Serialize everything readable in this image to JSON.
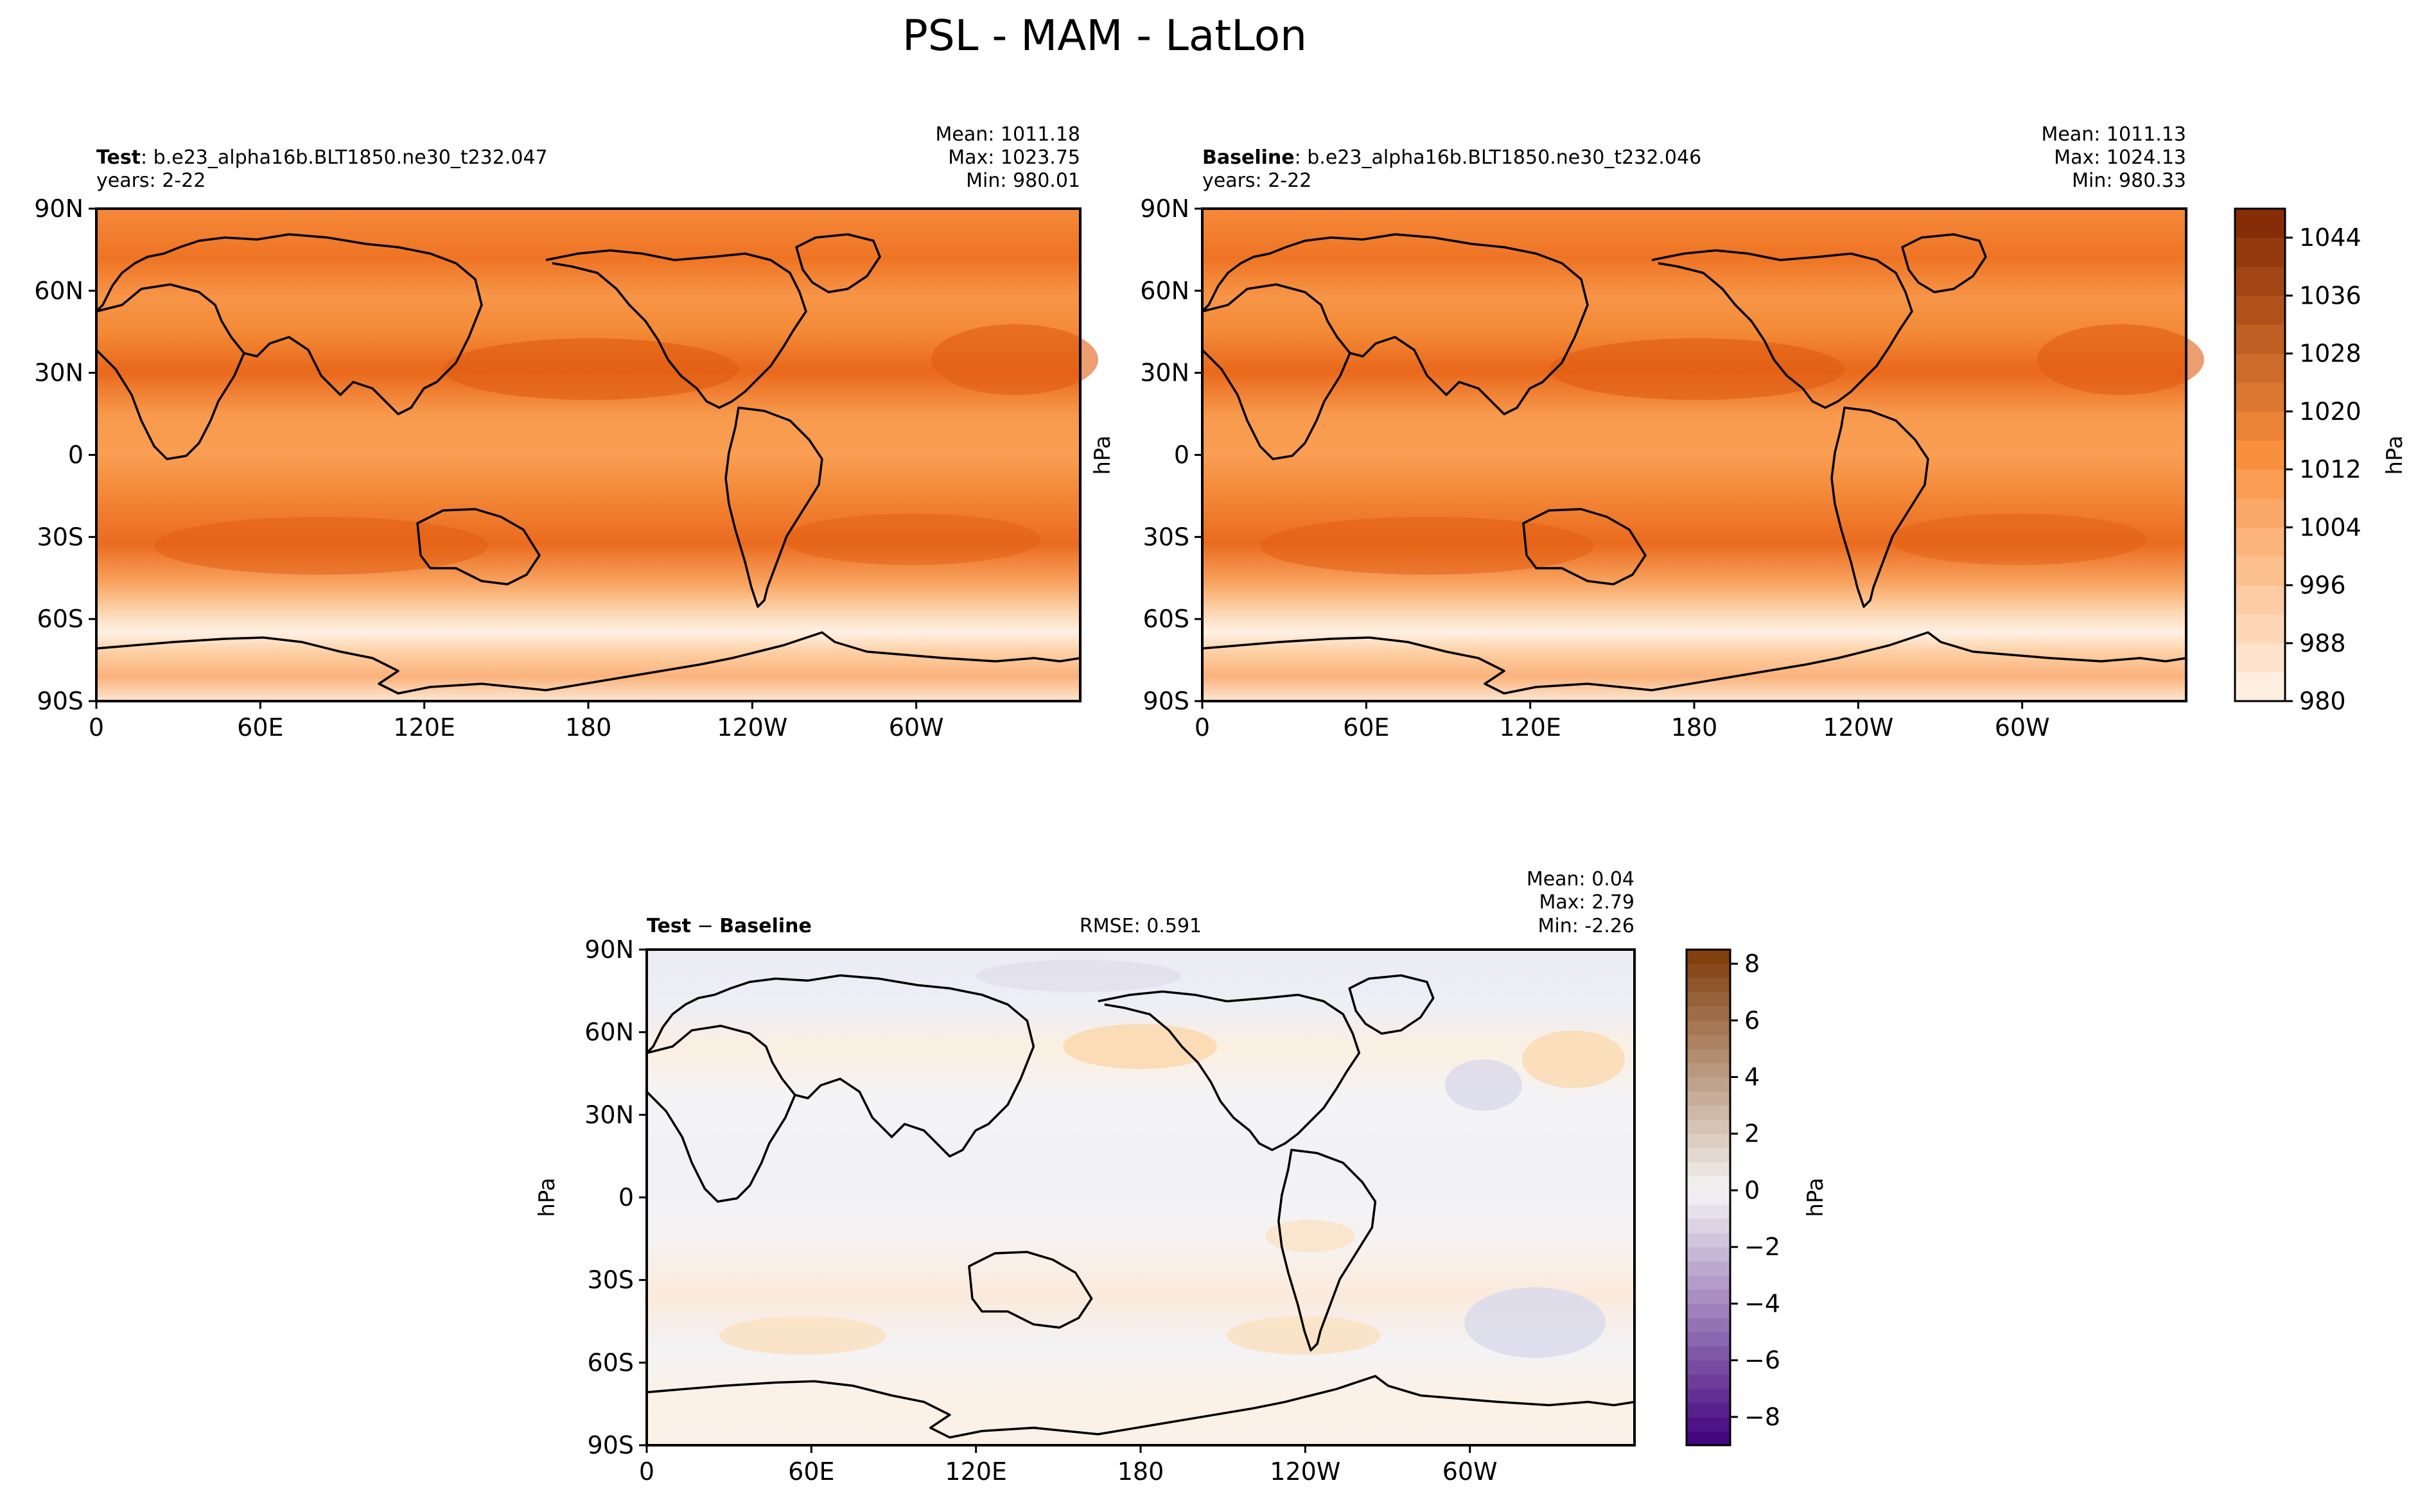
{
  "figure": {
    "title": "PSL - MAM - LatLon"
  },
  "colors": {
    "abs_low": "#fff5eb",
    "abs_mid": "#f9903e",
    "abs_high": "#7f2704",
    "abs_fill": "#f6852f",
    "abs_band": "#e8641a",
    "diff_neg_end": "#3f007d",
    "diff_zero": "#f4f4f4",
    "diff_pos_end": "#7f3b08",
    "diff_fill": "#f3f3f5",
    "coast": "#000000"
  },
  "chart_data": [
    {
      "type": "heatmap",
      "panel": "test",
      "label_bold": "Test",
      "label_rest": ": b.e23_alpha16b.BLT1850.ne30_t232.047",
      "years": "years: 2-22",
      "stats": {
        "mean": "Mean: 1011.18",
        "max": "Max: 1023.75",
        "min": "Min: 980.01"
      },
      "x_ticks": [
        "0",
        "60E",
        "120E",
        "180",
        "120W",
        "60W"
      ],
      "y_ticks": [
        "90N",
        "60N",
        "30N",
        "0",
        "30S",
        "60S",
        "90S"
      ],
      "xlim": [
        0,
        360
      ],
      "ylim": [
        -90,
        90
      ],
      "zonal_profile_hPa": [
        {
          "lat": 90,
          "value": 1014
        },
        {
          "lat": 75,
          "value": 1016
        },
        {
          "lat": 60,
          "value": 1012
        },
        {
          "lat": 45,
          "value": 1014
        },
        {
          "lat": 30,
          "value": 1020
        },
        {
          "lat": 15,
          "value": 1013
        },
        {
          "lat": 0,
          "value": 1010
        },
        {
          "lat": -15,
          "value": 1012
        },
        {
          "lat": -30,
          "value": 1019
        },
        {
          "lat": -45,
          "value": 1010
        },
        {
          "lat": -55,
          "value": 995
        },
        {
          "lat": -65,
          "value": 984
        },
        {
          "lat": -75,
          "value": 990
        },
        {
          "lat": -90,
          "value": 988
        }
      ]
    },
    {
      "type": "heatmap",
      "panel": "baseline",
      "label_bold": "Baseline",
      "label_rest": ": b.e23_alpha16b.BLT1850.ne30_t232.046",
      "years": "years: 2-22",
      "stats": {
        "mean": "Mean: 1011.13",
        "max": "Max: 1024.13",
        "min": "Min: 980.33"
      },
      "x_ticks": [
        "0",
        "60E",
        "120E",
        "180",
        "120W",
        "60W"
      ],
      "y_ticks": [
        "90N",
        "60N",
        "30N",
        "0",
        "30S",
        "60S",
        "90S"
      ],
      "xlim": [
        0,
        360
      ],
      "ylim": [
        -90,
        90
      ],
      "zonal_profile_hPa": [
        {
          "lat": 90,
          "value": 1014
        },
        {
          "lat": 75,
          "value": 1016
        },
        {
          "lat": 60,
          "value": 1012
        },
        {
          "lat": 45,
          "value": 1014
        },
        {
          "lat": 30,
          "value": 1020
        },
        {
          "lat": 15,
          "value": 1013
        },
        {
          "lat": 0,
          "value": 1010
        },
        {
          "lat": -15,
          "value": 1012
        },
        {
          "lat": -30,
          "value": 1019
        },
        {
          "lat": -45,
          "value": 1010
        },
        {
          "lat": -55,
          "value": 995
        },
        {
          "lat": -65,
          "value": 984
        },
        {
          "lat": -75,
          "value": 990
        },
        {
          "lat": -90,
          "value": 988
        }
      ],
      "ylabel": "hPa"
    },
    {
      "type": "heatmap",
      "panel": "diff",
      "label_bold": "Test",
      "label_minus": " − ",
      "label_bold2": "Baseline",
      "rmse": "RMSE: 0.591",
      "stats": {
        "mean": "Mean:  0.04",
        "max": "Max:  2.79",
        "min": "Min: -2.26"
      },
      "x_ticks": [
        "0",
        "60E",
        "120E",
        "180",
        "120W",
        "60W"
      ],
      "y_ticks": [
        "90N",
        "60N",
        "30N",
        "0",
        "30S",
        "60S",
        "90S"
      ],
      "xlim": [
        0,
        360
      ],
      "ylim": [
        -90,
        90
      ],
      "ylabel": "hPa"
    },
    {
      "type": "colorbar",
      "panel": "abs_colorbar",
      "range": [
        980,
        1048
      ],
      "ticks": [
        "1044",
        "1036",
        "1028",
        "1020",
        "1012",
        "1004",
        "996",
        "988",
        "980"
      ],
      "tick_values": [
        1044,
        1036,
        1028,
        1020,
        1012,
        1004,
        996,
        988,
        980
      ],
      "label": "hPa"
    },
    {
      "type": "colorbar",
      "panel": "diff_colorbar",
      "range": [
        -9,
        8.5
      ],
      "ticks": [
        "8",
        "6",
        "4",
        "2",
        "0",
        "−2",
        "−4",
        "−6",
        "−8"
      ],
      "tick_values": [
        8,
        6,
        4,
        2,
        0,
        -2,
        -4,
        -6,
        -8
      ],
      "label": "hPa"
    }
  ]
}
